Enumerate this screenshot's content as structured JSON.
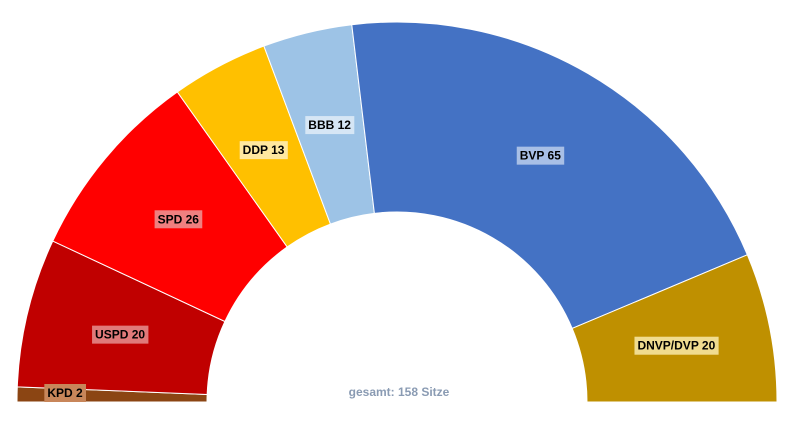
{
  "chart_data": {
    "type": "pie",
    "subtype": "semicircle-parliament",
    "total_label": "gesamt: 158 Sitze",
    "total": 158,
    "series": [
      {
        "name": "KPD",
        "label": "KPD 2",
        "value": 2,
        "color": "#8b4513",
        "label_bg": "#c8865a"
      },
      {
        "name": "USPD",
        "label": "USPD 20",
        "value": 20,
        "color": "#c00000",
        "label_bg": "#e07a7a"
      },
      {
        "name": "SPD",
        "label": "SPD 26",
        "value": 26,
        "color": "#ff0000",
        "label_bg": "#f08080"
      },
      {
        "name": "DDP",
        "label": "DDP 13",
        "value": 13,
        "color": "#ffc000",
        "label_bg": "#ffe8a0"
      },
      {
        "name": "BBB",
        "label": "BBB 12",
        "value": 12,
        "color": "#9dc3e6",
        "label_bg": "#d6e6f5"
      },
      {
        "name": "BVP",
        "label": "BVP 65",
        "value": 65,
        "color": "#4472c4",
        "label_bg": "#a8bfe6"
      },
      {
        "name": "DNVP/DVP",
        "label": "DNVP/DVP 20",
        "value": 20,
        "color": "#bf9000",
        "label_bg": "#f0dc90"
      }
    ]
  }
}
